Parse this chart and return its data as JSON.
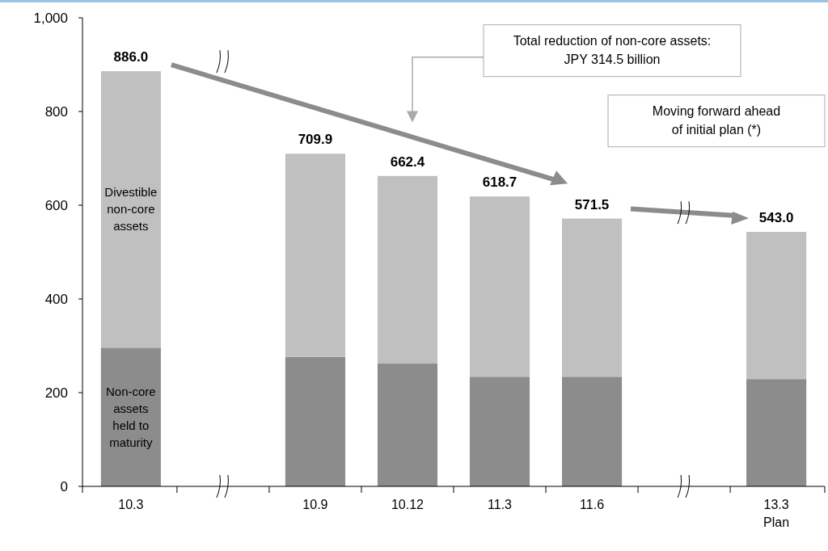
{
  "chart_data": {
    "type": "bar",
    "stacked": true,
    "categories": [
      "10.3",
      null,
      "10.9",
      "10.12",
      "11.3",
      "11.6",
      null,
      "13.3\nPlan"
    ],
    "series": [
      {
        "name": "Non-core assets held to maturity",
        "color": "#8c8c8c",
        "values": [
          296,
          null,
          276,
          262,
          234,
          234,
          null,
          229
        ]
      },
      {
        "name": "Divestible non-core assets",
        "color": "#c0c0c0",
        "values": [
          590,
          null,
          433.9,
          400.4,
          384.7,
          337.5,
          null,
          314
        ]
      }
    ],
    "totals": [
      "886.0",
      null,
      "709.9",
      "662.4",
      "618.7",
      "571.5",
      null,
      "543.0"
    ],
    "ylim": [
      0,
      1000
    ],
    "yticks": [
      0,
      200,
      400,
      600,
      800,
      {
        "value": 1000,
        "label": "1,000"
      }
    ],
    "annotations": [
      "Total reduction of non-core assets:\nJPY 314.5 billion",
      "Moving forward ahead\nof initial plan (*)"
    ]
  }
}
